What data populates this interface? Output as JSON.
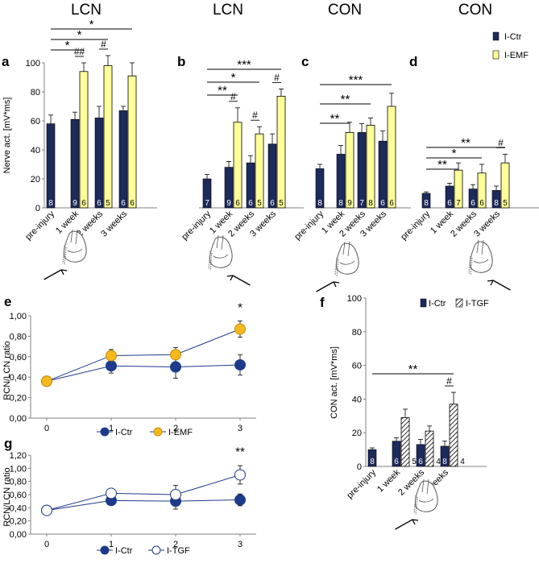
{
  "colors": {
    "ctr": "#1c2a5c",
    "emf": "#ffff99",
    "emf_line": "#f5b91e",
    "line_ctr": "#1e3a8a",
    "tgf_fill": "#ffffff",
    "axis": "#808080",
    "text": "#000000"
  },
  "chart_data": [
    {
      "id": "a",
      "type": "bar",
      "title": "LCN",
      "categories": [
        "pre-injury",
        "1 week",
        "2 weeks",
        "3 weeks"
      ],
      "ylabel": "Nerve act. [mV*ms]",
      "ylim": [
        0,
        100
      ],
      "yticks": [
        0,
        20,
        40,
        60,
        80,
        100
      ],
      "series": [
        {
          "name": "I-Ctr",
          "values": [
            58,
            61,
            62,
            67
          ],
          "errors": [
            6,
            5,
            8,
            3
          ],
          "n": [
            "8",
            "9",
            "6",
            "6"
          ]
        },
        {
          "name": "I-EMF",
          "values": [
            null,
            94,
            98,
            91
          ],
          "errors": [
            null,
            6,
            7,
            9
          ],
          "n": [
            "",
            "6",
            "5",
            "6"
          ]
        }
      ],
      "hashes": [
        {
          "category": 1,
          "text": "##"
        },
        {
          "category": 2,
          "text": "#"
        }
      ],
      "brackets": [
        {
          "from": 0,
          "to": 1,
          "text": "*"
        },
        {
          "from": 0,
          "to": 2,
          "text": "*"
        },
        {
          "from": 0,
          "to": 3,
          "text": "*"
        }
      ],
      "icon": {
        "arrow": "left"
      }
    },
    {
      "id": "b",
      "type": "bar",
      "title": "LCN",
      "categories": [
        "pre-injury",
        "1 week",
        "2 weeks",
        "3 weeks"
      ],
      "ylim": [
        0,
        100
      ],
      "series": [
        {
          "name": "I-Ctr",
          "values": [
            20,
            28,
            31,
            44
          ],
          "errors": [
            3,
            4,
            5,
            7
          ],
          "n": [
            "7",
            "9",
            "6",
            "6"
          ]
        },
        {
          "name": "I-EMF",
          "values": [
            null,
            59,
            51,
            77
          ],
          "errors": [
            null,
            10,
            5,
            5
          ],
          "n": [
            "",
            "6",
            "5",
            "5"
          ]
        }
      ],
      "hashes": [
        {
          "category": 1,
          "text": "#"
        },
        {
          "category": 2,
          "text": "#"
        },
        {
          "category": 3,
          "text": "#"
        }
      ],
      "brackets": [
        {
          "from": 0,
          "to": 1,
          "text": "**"
        },
        {
          "from": 0,
          "to": 2,
          "text": "*"
        },
        {
          "from": 0,
          "to": 3,
          "text": "***"
        }
      ],
      "icon": {
        "arrow": "right"
      }
    },
    {
      "id": "c",
      "type": "bar",
      "title": "CON",
      "categories": [
        "pre-injury",
        "1 week",
        "2 weeks",
        "3 weeks"
      ],
      "ylim": [
        0,
        100
      ],
      "series": [
        {
          "name": "I-Ctr",
          "values": [
            27,
            37,
            52,
            46
          ],
          "errors": [
            3,
            6,
            6,
            7
          ],
          "n": [
            "8",
            "8",
            "7",
            "6"
          ]
        },
        {
          "name": "I-EMF",
          "values": [
            null,
            52,
            57,
            70
          ],
          "errors": [
            null,
            7,
            5,
            9
          ],
          "n": [
            "",
            "9",
            "8",
            "6"
          ]
        }
      ],
      "hashes": [],
      "brackets": [
        {
          "from": 0,
          "to": 1,
          "text": "**"
        },
        {
          "from": 0,
          "to": 2,
          "text": "**"
        },
        {
          "from": 0,
          "to": 3,
          "text": "***"
        }
      ],
      "icon": {
        "arrow": "left"
      }
    },
    {
      "id": "d",
      "type": "bar",
      "title": "CON",
      "categories": [
        "pre-injury",
        "1 week",
        "2 weeks",
        "3 weeks"
      ],
      "ylim": [
        0,
        100
      ],
      "legend": [
        "I-Ctr",
        "I-EMF"
      ],
      "series": [
        {
          "name": "I-Ctr",
          "values": [
            10,
            15,
            13,
            12
          ],
          "errors": [
            1,
            2,
            3,
            3
          ],
          "n": [
            "8",
            "6",
            "6",
            "8"
          ]
        },
        {
          "name": "I-EMF",
          "values": [
            null,
            26,
            24,
            31
          ],
          "errors": [
            null,
            5,
            6,
            6
          ],
          "n": [
            "",
            "7",
            "6",
            "5"
          ]
        }
      ],
      "hashes": [
        {
          "category": 3,
          "text": "#"
        }
      ],
      "brackets": [
        {
          "from": 0,
          "to": 1,
          "text": "**"
        },
        {
          "from": 0,
          "to": 2,
          "text": "*"
        },
        {
          "from": 0,
          "to": 3,
          "text": "**"
        }
      ],
      "icon": {
        "arrow": "right"
      }
    },
    {
      "id": "e",
      "type": "line",
      "ylabel": "RCN/LCN  ratio",
      "ylim": [
        0,
        1
      ],
      "yticks": [
        "0,00",
        "0,20",
        "0,40",
        "0,60",
        "0,80",
        "1,00"
      ],
      "x": [
        0,
        1,
        2,
        3
      ],
      "xticks": [
        "0",
        "1",
        "2",
        "3"
      ],
      "series": [
        {
          "name": "I-Ctr",
          "values": [
            0.36,
            0.51,
            0.5,
            0.52
          ],
          "errors": [
            0.03,
            0.07,
            0.11,
            0.1
          ]
        },
        {
          "name": "I-EMF",
          "values": [
            0.36,
            0.61,
            0.62,
            0.87
          ],
          "errors": [
            0.03,
            0.06,
            0.07,
            0.08
          ]
        }
      ],
      "annotation": {
        "x": 3,
        "text": "*"
      },
      "legend": [
        "I-Ctr",
        "I-EMF"
      ]
    },
    {
      "id": "f",
      "type": "bar",
      "ylabel": "CON act. [mV*ms]",
      "ylim": [
        0,
        100
      ],
      "yticks": [
        0,
        20,
        40,
        60,
        80,
        100
      ],
      "categories": [
        "pre-injury",
        "1 week",
        "2 weeks",
        "3 weeks"
      ],
      "legend": [
        "I-Ctr",
        "I-TGF"
      ],
      "series": [
        {
          "name": "I-Ctr",
          "values": [
            10,
            15,
            13,
            12
          ],
          "errors": [
            1,
            2,
            3,
            3
          ],
          "n": [
            "8",
            "6",
            "6",
            "8"
          ]
        },
        {
          "name": "I-TGF",
          "values": [
            null,
            29,
            21,
            37
          ],
          "errors": [
            null,
            5,
            3,
            7
          ],
          "n": [
            "",
            "5",
            "4",
            "4"
          ]
        }
      ],
      "hashes": [
        {
          "category": 3,
          "text": "#"
        }
      ],
      "brackets": [
        {
          "from": 0,
          "to": 3,
          "text": "**"
        }
      ],
      "icon": {
        "arrow": "left"
      }
    },
    {
      "id": "g",
      "type": "line",
      "ylabel": "RCN/LCN ratio",
      "ylim": [
        0,
        1.2
      ],
      "yticks": [
        "0,00",
        "0,20",
        "0,40",
        "0,60",
        "0,80",
        "1,00",
        "1,20"
      ],
      "x": [
        0,
        1,
        2,
        3
      ],
      "xticks": [
        "0",
        "1",
        "2",
        "3"
      ],
      "series": [
        {
          "name": "I-Ctr",
          "values": [
            0.36,
            0.51,
            0.5,
            0.52
          ],
          "errors": [
            0.03,
            0.07,
            0.12,
            0.09
          ]
        },
        {
          "name": "I-TGF",
          "values": [
            0.36,
            0.62,
            0.6,
            0.9
          ],
          "errors": [
            0.03,
            0.06,
            0.14,
            0.14
          ]
        }
      ],
      "annotation": {
        "x": 3,
        "text": "**"
      },
      "legend": [
        "I-Ctr",
        "I-TGF"
      ]
    }
  ]
}
